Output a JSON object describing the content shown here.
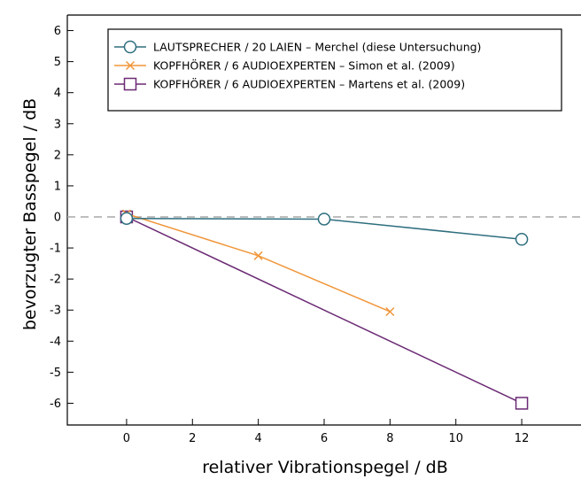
{
  "chart_data": {
    "type": "line",
    "title": "",
    "xlabel": "relativer Vibrationspegel / dB",
    "ylabel": "bevorzugter Basspegel / dB",
    "xlim": [
      -1.8,
      13.8
    ],
    "ylim": [
      -6.7,
      6.5
    ],
    "x_ticks": [
      0,
      2,
      4,
      6,
      8,
      10,
      12
    ],
    "y_ticks": [
      -6,
      -5,
      -4,
      -3,
      -2,
      -1,
      0,
      1,
      2,
      3,
      4,
      5,
      6
    ],
    "reference_line": {
      "y": 0,
      "style": "dashed",
      "color": "#a9a9a9"
    },
    "grid": false,
    "legend_position": "top-right",
    "series": [
      {
        "name": "LAUTSPRECHER / 20 LAIEN – Merchel (diese Untersuchung)",
        "marker": "circle",
        "color": "#2e6e7e",
        "x": [
          0,
          6,
          12
        ],
        "y": [
          -0.05,
          -0.07,
          -0.72
        ]
      },
      {
        "name": "KOPFHÖRER / 6 AUDIOEXPERTEN – Simon et al. (2009)",
        "marker": "x",
        "color": "#f0963a",
        "x": [
          0,
          4,
          8
        ],
        "y": [
          0.1,
          -1.25,
          -3.05
        ]
      },
      {
        "name": "KOPFHÖRER / 6 AUDIOEXPERTEN – Martens et al. (2009)",
        "marker": "square",
        "color": "#6b2a74",
        "x": [
          0,
          12
        ],
        "y": [
          0,
          -6.0
        ]
      }
    ]
  }
}
